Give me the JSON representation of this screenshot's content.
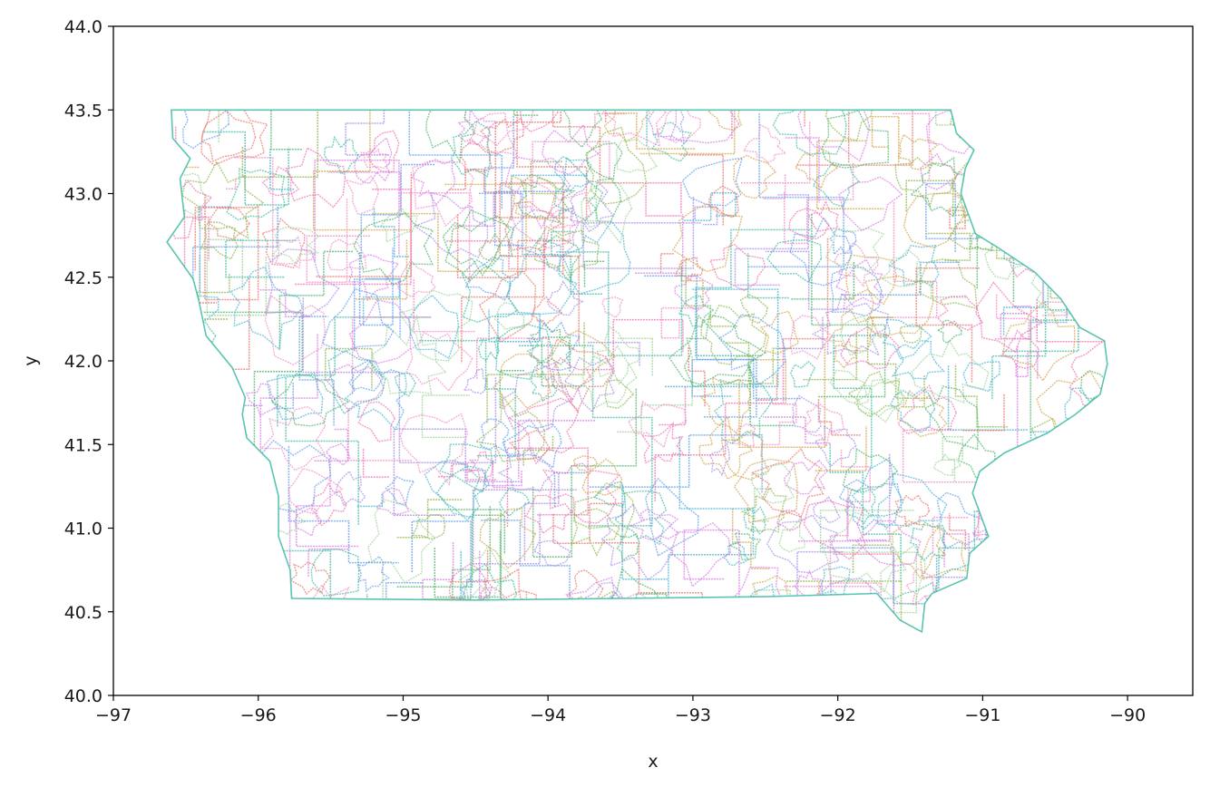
{
  "chart_data": {
    "type": "scatter",
    "title": "",
    "xlabel": "x",
    "ylabel": "y",
    "xlim": [
      -97.0,
      -89.55
    ],
    "ylim": [
      40.0,
      44.0
    ],
    "xticks": [
      -97,
      -96,
      -95,
      -94,
      -93,
      -92,
      -91,
      -90
    ],
    "xtick_labels": [
      "−97",
      "−96",
      "−95",
      "−94",
      "−93",
      "−92",
      "−91",
      "−90"
    ],
    "yticks": [
      40.0,
      40.5,
      41.0,
      41.5,
      42.0,
      42.5,
      43.0,
      43.5,
      44.0
    ],
    "ytick_labels": [
      "40.0",
      "40.5",
      "41.0",
      "41.5",
      "42.0",
      "42.5",
      "43.0",
      "43.5",
      "44.0"
    ],
    "grid": false,
    "legend": "none",
    "extent": {
      "x_min": -96.64,
      "x_max": -90.14,
      "y_min": 40.38,
      "y_max": 43.5
    },
    "palette": [
      "#e8746b",
      "#d3a24a",
      "#8fb548",
      "#4bb36a",
      "#3dbba4",
      "#45b3d6",
      "#5f9ded",
      "#a78be8",
      "#d97ae6",
      "#ee6fb4",
      "#f28ec8",
      "#9fd39a"
    ],
    "state_outline": [
      [
        -96.6,
        43.5
      ],
      [
        -91.22,
        43.5
      ],
      [
        -91.18,
        43.36
      ],
      [
        -91.06,
        43.26
      ],
      [
        -91.12,
        43.15
      ],
      [
        -91.15,
        43.0
      ],
      [
        -91.05,
        42.76
      ],
      [
        -90.9,
        42.68
      ],
      [
        -90.64,
        42.53
      ],
      [
        -90.46,
        42.37
      ],
      [
        -90.33,
        42.2
      ],
      [
        -90.16,
        42.12
      ],
      [
        -90.14,
        41.98
      ],
      [
        -90.19,
        41.8
      ],
      [
        -90.36,
        41.68
      ],
      [
        -90.55,
        41.57
      ],
      [
        -90.85,
        41.45
      ],
      [
        -91.02,
        41.34
      ],
      [
        -91.07,
        41.21
      ],
      [
        -90.96,
        40.95
      ],
      [
        -91.09,
        40.85
      ],
      [
        -91.11,
        40.7
      ],
      [
        -91.35,
        40.61
      ],
      [
        -91.4,
        40.55
      ],
      [
        -91.42,
        40.38
      ],
      [
        -91.57,
        40.45
      ],
      [
        -91.73,
        40.61
      ],
      [
        -92.5,
        40.59
      ],
      [
        -93.5,
        40.58
      ],
      [
        -94.5,
        40.57
      ],
      [
        -95.77,
        40.58
      ],
      [
        -95.78,
        40.75
      ],
      [
        -95.86,
        40.95
      ],
      [
        -95.86,
        41.19
      ],
      [
        -95.92,
        41.4
      ],
      [
        -96.08,
        41.54
      ],
      [
        -96.11,
        41.68
      ],
      [
        -96.09,
        41.78
      ],
      [
        -96.18,
        41.96
      ],
      [
        -96.36,
        42.15
      ],
      [
        -96.41,
        42.36
      ],
      [
        -96.45,
        42.49
      ],
      [
        -96.63,
        42.71
      ],
      [
        -96.51,
        42.86
      ],
      [
        -96.54,
        43.09
      ],
      [
        -96.47,
        43.21
      ],
      [
        -96.59,
        43.33
      ],
      [
        -96.6,
        43.5
      ]
    ]
  }
}
